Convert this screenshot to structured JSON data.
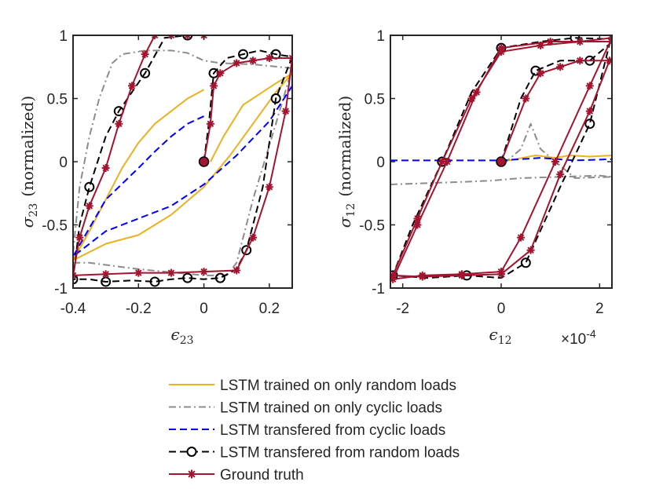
{
  "chart_data": [
    {
      "type": "line",
      "xlabel_symbol": "ϵ",
      "xlabel_subscript": "23",
      "ylabel_symbol": "σ",
      "ylabel_subscript": "23",
      "ylabel_suffix": "(normalized)",
      "xlim": [
        -0.4,
        0.27
      ],
      "ylim": [
        -1,
        1
      ],
      "xticks": [
        -0.4,
        -0.2,
        0,
        0.2
      ],
      "xtick_labels": [
        "-0.4",
        "-0.2",
        "0",
        "0.2"
      ],
      "yticks": [
        -1,
        -0.5,
        0,
        0.5,
        1
      ],
      "ytick_labels": [
        "-1",
        "-0.5",
        "0",
        "0.5",
        "1"
      ],
      "grid": false,
      "series": [
        {
          "name": "LSTM trained on only random loads",
          "points": [
            [
              0,
              0.57
            ],
            [
              -0.05,
              0.5
            ],
            [
              -0.1,
              0.4
            ],
            [
              -0.15,
              0.3
            ],
            [
              -0.2,
              0.15
            ],
            [
              -0.25,
              -0.05
            ],
            [
              -0.3,
              -0.3
            ],
            [
              -0.35,
              -0.55
            ],
            [
              -0.4,
              -0.78
            ],
            [
              -0.3,
              -0.65
            ],
            [
              -0.2,
              -0.58
            ],
            [
              -0.1,
              -0.42
            ],
            [
              0,
              -0.2
            ],
            [
              0.08,
              0.05
            ],
            [
              0.15,
              0.3
            ],
            [
              0.22,
              0.55
            ],
            [
              0.27,
              0.7
            ],
            [
              0.22,
              0.62
            ],
            [
              0.12,
              0.45
            ],
            [
              0.06,
              0.2
            ],
            [
              0.03,
              0.05
            ],
            [
              0.02,
              0
            ]
          ]
        },
        {
          "name": "LSTM trained on only cyclic loads",
          "points": [
            [
              -0.4,
              -0.72
            ],
            [
              -0.38,
              -0.2
            ],
            [
              -0.35,
              0.2
            ],
            [
              -0.32,
              0.5
            ],
            [
              -0.28,
              0.78
            ],
            [
              -0.25,
              0.85
            ],
            [
              -0.18,
              0.88
            ],
            [
              -0.1,
              0.88
            ],
            [
              -0.05,
              0.86
            ],
            [
              0,
              0.8
            ],
            [
              0.05,
              0.78
            ],
            [
              0.15,
              0.77
            ],
            [
              0.27,
              0.74
            ],
            [
              0.22,
              0.3
            ],
            [
              0.15,
              -0.3
            ],
            [
              0.1,
              -0.8
            ],
            [
              0.07,
              -0.9
            ],
            [
              0,
              -0.9
            ],
            [
              -0.2,
              -0.85
            ],
            [
              -0.35,
              -0.8
            ],
            [
              -0.4,
              -0.8
            ]
          ]
        },
        {
          "name": "LSTM transfered from cyclic loads",
          "points": [
            [
              0,
              0.36
            ],
            [
              -0.05,
              0.3
            ],
            [
              -0.1,
              0.2
            ],
            [
              -0.15,
              0.08
            ],
            [
              -0.2,
              -0.05
            ],
            [
              -0.3,
              -0.3
            ],
            [
              -0.4,
              -0.75
            ],
            [
              -0.3,
              -0.55
            ],
            [
              -0.2,
              -0.45
            ],
            [
              -0.1,
              -0.35
            ],
            [
              0,
              -0.18
            ],
            [
              0.1,
              0.05
            ],
            [
              0.2,
              0.32
            ],
            [
              0.27,
              0.6
            ]
          ]
        },
        {
          "name": "LSTM transfered from random loads",
          "marker": "circle",
          "points": [
            [
              0,
              0
            ],
            [
              0.015,
              0.3
            ],
            [
              0.03,
              0.7
            ],
            [
              0.07,
              0.82
            ],
            [
              0.12,
              0.85
            ],
            [
              0.17,
              0.88
            ],
            [
              0.22,
              0.85
            ],
            [
              0.27,
              0.83
            ],
            [
              0.22,
              0.5
            ],
            [
              0.18,
              -0.2
            ],
            [
              0.13,
              -0.7
            ],
            [
              0.1,
              -0.85
            ],
            [
              0.05,
              -0.92
            ],
            [
              0,
              -0.93
            ],
            [
              -0.05,
              -0.92
            ],
            [
              -0.1,
              -0.93
            ],
            [
              -0.15,
              -0.95
            ],
            [
              -0.22,
              -0.94
            ],
            [
              -0.3,
              -0.95
            ],
            [
              -0.35,
              -0.93
            ],
            [
              -0.4,
              -0.93
            ],
            [
              -0.38,
              -0.5
            ],
            [
              -0.35,
              -0.2
            ],
            [
              -0.3,
              0.2
            ],
            [
              -0.26,
              0.4
            ],
            [
              -0.22,
              0.55
            ],
            [
              -0.18,
              0.7
            ],
            [
              -0.12,
              0.98
            ],
            [
              -0.05,
              1
            ]
          ]
        },
        {
          "name": "Ground truth",
          "marker": "star",
          "points": [
            [
              0,
              0
            ],
            [
              0.02,
              0.3
            ],
            [
              0.03,
              0.6
            ],
            [
              0.05,
              0.7
            ],
            [
              0.1,
              0.78
            ],
            [
              0.15,
              0.8
            ],
            [
              0.2,
              0.82
            ],
            [
              0.27,
              0.82
            ],
            [
              0.25,
              0.4
            ],
            [
              0.2,
              -0.2
            ],
            [
              0.15,
              -0.6
            ],
            [
              0.1,
              -0.86
            ],
            [
              0,
              -0.87
            ],
            [
              -0.1,
              -0.88
            ],
            [
              -0.2,
              -0.88
            ],
            [
              -0.3,
              -0.89
            ],
            [
              -0.4,
              -0.9
            ],
            [
              -0.38,
              -0.6
            ],
            [
              -0.35,
              -0.35
            ],
            [
              -0.3,
              -0.05
            ],
            [
              -0.26,
              0.3
            ],
            [
              -0.22,
              0.6
            ],
            [
              -0.18,
              0.85
            ],
            [
              -0.15,
              1
            ],
            [
              -0.1,
              1
            ],
            [
              -0.05,
              1
            ],
            [
              0,
              1
            ]
          ]
        }
      ],
      "start_marker": [
        0,
        0
      ]
    },
    {
      "type": "line",
      "xlabel_symbol": "ϵ",
      "xlabel_subscript": "12",
      "ylabel_symbol": "σ",
      "ylabel_subscript": "12",
      "ylabel_suffix": "(normalized)",
      "x_exponent_base": "×10",
      "x_exponent_power": "-4",
      "xlim": [
        -2.25,
        2.25
      ],
      "ylim": [
        -1,
        1
      ],
      "xticks": [
        -2,
        0,
        2
      ],
      "xtick_labels": [
        "-2",
        "0",
        "2"
      ],
      "yticks": [
        -1,
        -0.5,
        0,
        0.5,
        1
      ],
      "ytick_labels": [
        "-1",
        "-0.5",
        "0",
        "0.5",
        "1"
      ],
      "grid": false,
      "series": [
        {
          "name": "LSTM trained on only random loads",
          "points": [
            [
              0,
              0
            ],
            [
              0.3,
              0.02
            ],
            [
              0.7,
              0.05
            ],
            [
              1.1,
              0.03
            ],
            [
              1.4,
              0.05
            ],
            [
              1.8,
              0.04
            ],
            [
              2.25,
              0.05
            ]
          ]
        },
        {
          "name": "LSTM trained on only cyclic loads",
          "points": [
            [
              -2.25,
              -0.18
            ],
            [
              -1.5,
              -0.17
            ],
            [
              -0.8,
              -0.16
            ],
            [
              -0.2,
              -0.15
            ],
            [
              0.4,
              -0.13
            ],
            [
              1.2,
              -0.12
            ],
            [
              2,
              -0.11
            ],
            [
              2.25,
              -0.12
            ],
            [
              1.5,
              -0.13
            ],
            [
              0.8,
              0.1
            ],
            [
              0.6,
              0.3
            ],
            [
              0.4,
              0.1
            ],
            [
              0.1,
              0
            ]
          ]
        },
        {
          "name": "LSTM transfered from cyclic loads",
          "points": [
            [
              -2.25,
              0.01
            ],
            [
              -1.5,
              0.01
            ],
            [
              -0.5,
              0.01
            ],
            [
              0,
              0.01
            ],
            [
              0.4,
              0.02
            ],
            [
              0.8,
              0.03
            ],
            [
              1.5,
              0.01
            ],
            [
              2.25,
              0.02
            ]
          ]
        },
        {
          "name": "LSTM transfered from random loads",
          "marker": "circle",
          "points": [
            [
              0,
              0
            ],
            [
              0.4,
              0.5
            ],
            [
              0.7,
              0.72
            ],
            [
              1.2,
              0.8
            ],
            [
              1.8,
              0.8
            ],
            [
              2.2,
              0.93
            ],
            [
              1.8,
              0.3
            ],
            [
              1.2,
              -0.2
            ],
            [
              0.5,
              -0.8
            ],
            [
              0,
              -0.92
            ],
            [
              -0.7,
              -0.9
            ],
            [
              -1.5,
              -0.92
            ],
            [
              -2.2,
              -0.9
            ],
            [
              -1.8,
              -0.5
            ],
            [
              -1.2,
              0
            ],
            [
              -0.6,
              0.55
            ],
            [
              0,
              0.9
            ],
            [
              0.8,
              0.95
            ],
            [
              1.5,
              0.98
            ],
            [
              2.25,
              0.97
            ]
          ]
        },
        {
          "name": "Ground truth",
          "marker": "star",
          "points": [
            [
              0,
              0
            ],
            [
              0.5,
              0.5
            ],
            [
              0.8,
              0.7
            ],
            [
              1.2,
              0.75
            ],
            [
              1.6,
              0.8
            ],
            [
              2.2,
              0.8
            ],
            [
              1.8,
              0.4
            ],
            [
              1.2,
              -0.1
            ],
            [
              0.6,
              -0.7
            ],
            [
              0,
              -0.89
            ],
            [
              -0.8,
              -0.9
            ],
            [
              -1.6,
              -0.91
            ],
            [
              -2.2,
              -0.9
            ],
            [
              -1.7,
              -0.45
            ],
            [
              -1.2,
              0
            ],
            [
              -0.6,
              0.5
            ],
            [
              0,
              0.87
            ],
            [
              0.8,
              0.92
            ],
            [
              1.6,
              0.95
            ],
            [
              2.25,
              0.98
            ],
            [
              1.8,
              0.6
            ],
            [
              1.1,
              0
            ],
            [
              0.4,
              -0.6
            ],
            [
              0,
              -0.87
            ],
            [
              -0.8,
              -0.89
            ],
            [
              -1.6,
              -0.9
            ],
            [
              -2.2,
              -0.93
            ],
            [
              -1.7,
              -0.5
            ],
            [
              -1.1,
              0
            ],
            [
              -0.5,
              0.55
            ],
            [
              0,
              0.9
            ],
            [
              1,
              0.95
            ],
            [
              2.25,
              0.95
            ]
          ]
        }
      ],
      "start_marker": [
        0,
        0
      ]
    }
  ],
  "legend": {
    "position": "bottom-center",
    "entries": [
      {
        "label": "LSTM trained on only random loads",
        "color": "#EDB120",
        "style": "solid",
        "marker": "none"
      },
      {
        "label": "LSTM trained on only cyclic loads",
        "color": "#8C8C8C",
        "style": "dash-dot",
        "marker": "none"
      },
      {
        "label": "LSTM transfered from cyclic loads",
        "color": "#0000FF",
        "style": "dashed",
        "marker": "none"
      },
      {
        "label": "LSTM transfered from random loads",
        "color": "#000000",
        "style": "dashed",
        "marker": "circle"
      },
      {
        "label": "Ground truth",
        "color": "#A2142F",
        "style": "solid",
        "marker": "star"
      }
    ]
  }
}
